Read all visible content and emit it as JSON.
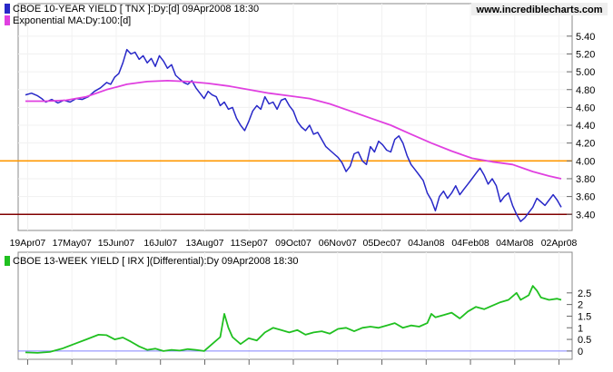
{
  "brand": "www.incrediblecharts.com",
  "chart_data": [
    {
      "type": "line",
      "series": [
        {
          "name": "CBOE 10-YEAR YIELD [ TNX ]:Dy:[d]  09Apr2008 18:30",
          "color": "#2828c8",
          "values": [
            [
              0,
              4.74
            ],
            [
              3,
              4.76
            ],
            [
              6,
              4.73
            ],
            [
              8,
              4.7
            ],
            [
              10,
              4.66
            ],
            [
              13,
              4.69
            ],
            [
              16,
              4.65
            ],
            [
              19,
              4.68
            ],
            [
              22,
              4.66
            ],
            [
              25,
              4.7
            ],
            [
              28,
              4.69
            ],
            [
              31,
              4.72
            ],
            [
              34,
              4.78
            ],
            [
              37,
              4.82
            ],
            [
              40,
              4.88
            ],
            [
              42,
              4.86
            ],
            [
              44,
              4.94
            ],
            [
              46,
              4.98
            ],
            [
              48,
              5.1
            ],
            [
              50,
              5.25
            ],
            [
              52,
              5.2
            ],
            [
              54,
              5.22
            ],
            [
              56,
              5.14
            ],
            [
              58,
              5.18
            ],
            [
              60,
              5.1
            ],
            [
              62,
              5.15
            ],
            [
              64,
              5.06
            ],
            [
              66,
              5.18
            ],
            [
              68,
              5.12
            ],
            [
              70,
              5.04
            ],
            [
              72,
              5.08
            ],
            [
              74,
              4.96
            ],
            [
              76,
              4.92
            ],
            [
              78,
              4.88
            ],
            [
              80,
              4.86
            ],
            [
              82,
              4.9
            ],
            [
              84,
              4.82
            ],
            [
              86,
              4.76
            ],
            [
              88,
              4.7
            ],
            [
              90,
              4.78
            ],
            [
              92,
              4.74
            ],
            [
              94,
              4.72
            ],
            [
              96,
              4.62
            ],
            [
              98,
              4.66
            ],
            [
              100,
              4.58
            ],
            [
              102,
              4.6
            ],
            [
              104,
              4.48
            ],
            [
              106,
              4.4
            ],
            [
              108,
              4.34
            ],
            [
              110,
              4.44
            ],
            [
              112,
              4.56
            ],
            [
              114,
              4.62
            ],
            [
              116,
              4.58
            ],
            [
              118,
              4.72
            ],
            [
              120,
              4.64
            ],
            [
              122,
              4.66
            ],
            [
              124,
              4.58
            ],
            [
              126,
              4.68
            ],
            [
              128,
              4.7
            ],
            [
              130,
              4.62
            ],
            [
              132,
              4.56
            ],
            [
              134,
              4.44
            ],
            [
              136,
              4.38
            ],
            [
              138,
              4.34
            ],
            [
              140,
              4.4
            ],
            [
              142,
              4.3
            ],
            [
              144,
              4.32
            ],
            [
              146,
              4.24
            ],
            [
              148,
              4.16
            ],
            [
              150,
              4.12
            ],
            [
              152,
              4.08
            ],
            [
              154,
              4.04
            ],
            [
              156,
              3.98
            ],
            [
              158,
              3.88
            ],
            [
              160,
              3.94
            ],
            [
              162,
              4.08
            ],
            [
              164,
              4.1
            ],
            [
              166,
              4.0
            ],
            [
              168,
              3.96
            ],
            [
              170,
              4.16
            ],
            [
              172,
              4.1
            ],
            [
              174,
              4.22
            ],
            [
              176,
              4.18
            ],
            [
              178,
              4.12
            ],
            [
              180,
              4.1
            ],
            [
              182,
              4.24
            ],
            [
              184,
              4.28
            ],
            [
              186,
              4.2
            ],
            [
              188,
              4.06
            ],
            [
              190,
              3.96
            ],
            [
              192,
              3.9
            ],
            [
              194,
              3.84
            ],
            [
              196,
              3.78
            ],
            [
              198,
              3.64
            ],
            [
              200,
              3.56
            ],
            [
              202,
              3.44
            ],
            [
              204,
              3.6
            ],
            [
              206,
              3.66
            ],
            [
              208,
              3.58
            ],
            [
              210,
              3.64
            ],
            [
              212,
              3.72
            ],
            [
              214,
              3.62
            ],
            [
              216,
              3.68
            ],
            [
              218,
              3.74
            ],
            [
              220,
              3.8
            ],
            [
              222,
              3.86
            ],
            [
              224,
              3.92
            ],
            [
              226,
              3.84
            ],
            [
              228,
              3.74
            ],
            [
              230,
              3.8
            ],
            [
              232,
              3.72
            ],
            [
              234,
              3.54
            ],
            [
              236,
              3.6
            ],
            [
              238,
              3.64
            ],
            [
              240,
              3.5
            ],
            [
              242,
              3.4
            ],
            [
              244,
              3.32
            ],
            [
              246,
              3.36
            ],
            [
              248,
              3.42
            ],
            [
              250,
              3.48
            ],
            [
              252,
              3.58
            ],
            [
              254,
              3.54
            ],
            [
              256,
              3.5
            ],
            [
              258,
              3.56
            ],
            [
              260,
              3.62
            ],
            [
              262,
              3.56
            ],
            [
              264,
              3.48
            ]
          ]
        },
        {
          "name": "Exponential MA:Dy:100:[d]",
          "color": "#e040e0",
          "values": [
            [
              0,
              4.67
            ],
            [
              10,
              4.67
            ],
            [
              20,
              4.68
            ],
            [
              30,
              4.72
            ],
            [
              40,
              4.8
            ],
            [
              50,
              4.86
            ],
            [
              60,
              4.89
            ],
            [
              70,
              4.9
            ],
            [
              80,
              4.89
            ],
            [
              90,
              4.87
            ],
            [
              100,
              4.84
            ],
            [
              110,
              4.8
            ],
            [
              120,
              4.76
            ],
            [
              130,
              4.73
            ],
            [
              140,
              4.7
            ],
            [
              150,
              4.64
            ],
            [
              160,
              4.56
            ],
            [
              170,
              4.48
            ],
            [
              180,
              4.4
            ],
            [
              190,
              4.3
            ],
            [
              200,
              4.2
            ],
            [
              210,
              4.11
            ],
            [
              220,
              4.03
            ],
            [
              230,
              3.99
            ],
            [
              240,
              3.96
            ],
            [
              250,
              3.88
            ],
            [
              258,
              3.83
            ],
            [
              264,
              3.8
            ]
          ]
        }
      ],
      "lines": [
        {
          "name": "resistance",
          "value": 4.0,
          "color": "#ff9800"
        },
        {
          "name": "support",
          "value": 3.4,
          "color": "#800000"
        }
      ],
      "ylim": [
        3.26,
        5.5
      ],
      "yticks": [
        "5.40",
        "5.20",
        "5.00",
        "4.80",
        "4.60",
        "4.40",
        "4.20",
        "4.00",
        "3.80",
        "3.60",
        "3.40"
      ],
      "categories": [
        "19Apr07",
        "17May07",
        "15Jun07",
        "16Jul07",
        "13Aug07",
        "11Sep07",
        "09Oct07",
        "06Nov07",
        "05Dec07",
        "04Jan08",
        "04Feb08",
        "04Mar08",
        "02Apr08"
      ],
      "xlim": [
        0,
        264
      ],
      "grid": true
    },
    {
      "type": "line",
      "series": [
        {
          "name": "CBOE 13-WEEK YIELD [ IRX ](Differential):Dy  09Apr2008 18:30",
          "color": "#20c020",
          "values": [
            [
              0,
              -0.06
            ],
            [
              6,
              -0.08
            ],
            [
              12,
              -0.04
            ],
            [
              18,
              0.1
            ],
            [
              24,
              0.3
            ],
            [
              30,
              0.5
            ],
            [
              36,
              0.7
            ],
            [
              40,
              0.68
            ],
            [
              44,
              0.5
            ],
            [
              48,
              0.58
            ],
            [
              52,
              0.4
            ],
            [
              56,
              0.2
            ],
            [
              60,
              0.05
            ],
            [
              64,
              0.1
            ],
            [
              68,
              0.0
            ],
            [
              72,
              0.05
            ],
            [
              76,
              0.02
            ],
            [
              80,
              0.08
            ],
            [
              84,
              0.05
            ],
            [
              88,
              0.0
            ],
            [
              92,
              0.3
            ],
            [
              96,
              0.6
            ],
            [
              98,
              1.6
            ],
            [
              100,
              1.0
            ],
            [
              102,
              0.6
            ],
            [
              106,
              0.3
            ],
            [
              110,
              0.55
            ],
            [
              114,
              0.45
            ],
            [
              118,
              0.8
            ],
            [
              122,
              1.0
            ],
            [
              126,
              0.9
            ],
            [
              130,
              0.8
            ],
            [
              134,
              0.9
            ],
            [
              138,
              0.7
            ],
            [
              142,
              0.8
            ],
            [
              146,
              0.85
            ],
            [
              150,
              0.75
            ],
            [
              154,
              0.95
            ],
            [
              158,
              1.0
            ],
            [
              162,
              0.85
            ],
            [
              166,
              1.0
            ],
            [
              170,
              1.05
            ],
            [
              174,
              1.0
            ],
            [
              178,
              1.1
            ],
            [
              182,
              1.2
            ],
            [
              186,
              1.0
            ],
            [
              190,
              1.1
            ],
            [
              194,
              1.05
            ],
            [
              198,
              1.2
            ],
            [
              200,
              1.6
            ],
            [
              202,
              1.45
            ],
            [
              206,
              1.55
            ],
            [
              210,
              1.65
            ],
            [
              214,
              1.4
            ],
            [
              218,
              1.7
            ],
            [
              222,
              1.9
            ],
            [
              226,
              1.8
            ],
            [
              230,
              1.95
            ],
            [
              234,
              2.1
            ],
            [
              238,
              2.2
            ],
            [
              242,
              2.5
            ],
            [
              244,
              2.2
            ],
            [
              248,
              2.4
            ],
            [
              250,
              2.8
            ],
            [
              252,
              2.6
            ],
            [
              254,
              2.3
            ],
            [
              258,
              2.2
            ],
            [
              262,
              2.25
            ],
            [
              264,
              2.2
            ]
          ]
        }
      ],
      "lines": [
        {
          "name": "zero",
          "value": 0,
          "color": "#8080ff"
        }
      ],
      "ylim": [
        -0.2,
        3.0
      ],
      "yticks": [
        "2.5",
        "2",
        "1.5",
        "1",
        "0.5",
        "0"
      ],
      "xlim": [
        0,
        264
      ]
    }
  ]
}
